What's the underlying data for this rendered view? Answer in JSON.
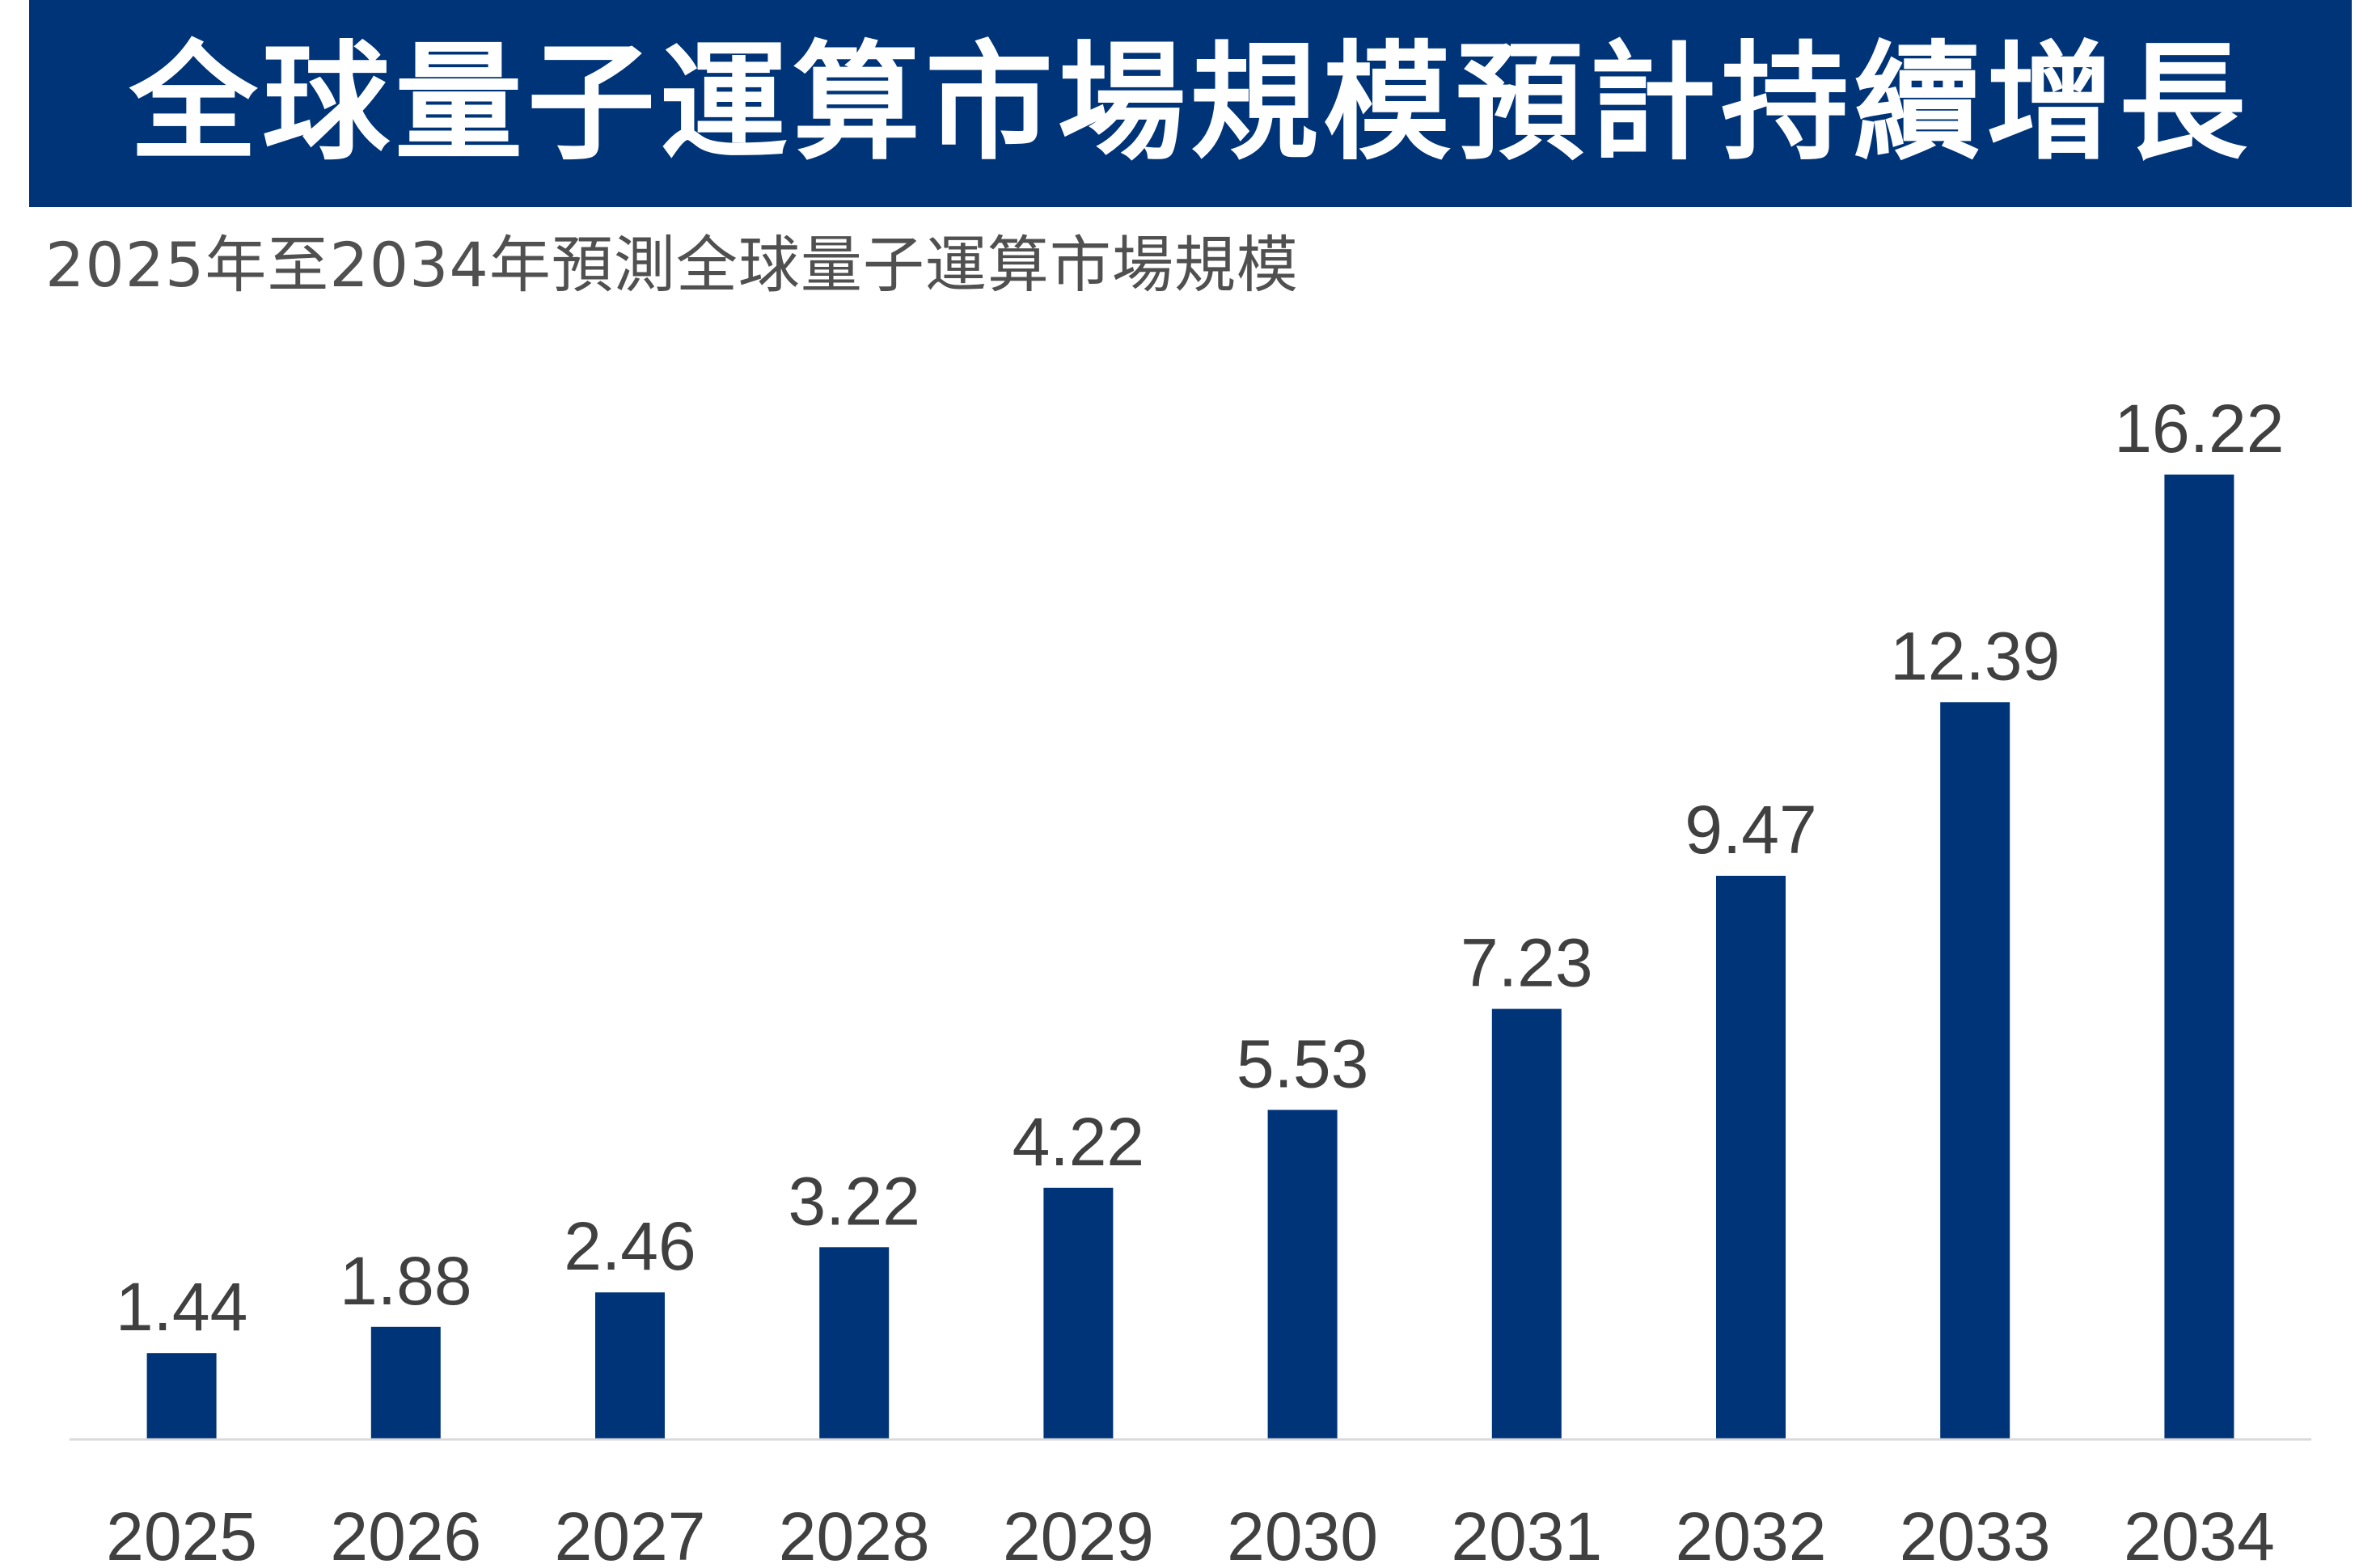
{
  "header": {
    "title": "全球量子運算市場規模預計持續增長",
    "subtitle": "2025年至2034年預測全球量子運算市場規模"
  },
  "colors": {
    "banner": "#003478",
    "bar": "#003478",
    "axis": "#d9d9d9",
    "text": "#404040"
  },
  "chart_data": {
    "type": "bar",
    "title": "全球量子運算市場規模預計持續增長",
    "subtitle": "2025年至2034年預測全球量子運算市場規模",
    "categories": [
      "2025",
      "2026",
      "2027",
      "2028",
      "2029",
      "2030",
      "2031",
      "2032",
      "2033",
      "2034"
    ],
    "values": [
      1.44,
      1.88,
      2.46,
      3.22,
      4.22,
      5.53,
      7.23,
      9.47,
      12.39,
      16.22
    ],
    "value_labels": [
      "1.44",
      "1.88",
      "2.46",
      "3.22",
      "4.22",
      "5.53",
      "7.23",
      "9.47",
      "12.39",
      "16.22"
    ],
    "ylim": [
      0,
      17.5
    ],
    "grid": false,
    "legend": "none"
  }
}
